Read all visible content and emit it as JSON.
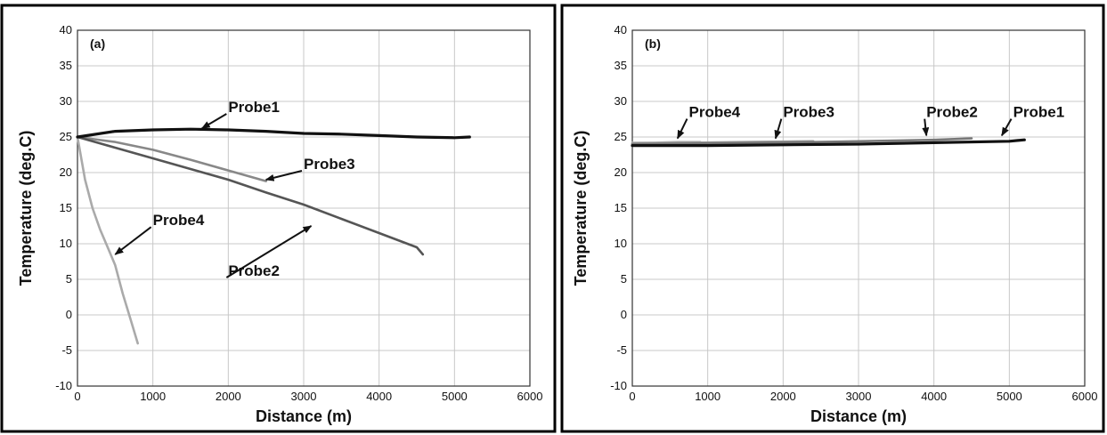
{
  "chart_data": [
    {
      "type": "line",
      "panel_label": "(a)",
      "xlabel": "Distance (m)",
      "ylabel": "Temperature (deg.C)",
      "xlim": [
        0,
        6000
      ],
      "ylim": [
        -10,
        40
      ],
      "xticks": [
        "0",
        "1000",
        "2000",
        "3000",
        "4000",
        "5000",
        "6000"
      ],
      "yticks": [
        "-10",
        "-5",
        "0",
        "5",
        "10",
        "15",
        "20",
        "25",
        "30",
        "35",
        "40"
      ],
      "grid": true,
      "series": [
        {
          "name": "Probe1",
          "color": "#111111",
          "x": [
            0,
            500,
            1000,
            1500,
            2000,
            2500,
            3000,
            3500,
            4000,
            4500,
            5000,
            5200
          ],
          "y": [
            25,
            25.8,
            26,
            26.1,
            26,
            25.8,
            25.5,
            25.4,
            25.2,
            25.0,
            24.9,
            25.0
          ]
        },
        {
          "name": "Probe2",
          "color": "#555555",
          "x": [
            0,
            500,
            1000,
            1500,
            2000,
            2500,
            3000,
            3500,
            4000,
            4500,
            4580
          ],
          "y": [
            25,
            23.5,
            22,
            20.5,
            19,
            17.2,
            15.5,
            13.5,
            11.5,
            9.5,
            8.5
          ]
        },
        {
          "name": "Probe3",
          "color": "#888888",
          "x": [
            0,
            500,
            1000,
            1500,
            2000,
            2500
          ],
          "y": [
            25,
            24.3,
            23.2,
            21.8,
            20.3,
            18.8
          ]
        },
        {
          "name": "Probe4",
          "color": "#aaaaaa",
          "x": [
            0,
            100,
            200,
            300,
            400,
            500,
            600,
            700,
            800
          ],
          "y": [
            25,
            19,
            15,
            12,
            9.5,
            7,
            3,
            -0.5,
            -4
          ]
        }
      ],
      "annotations": [
        {
          "text": "Probe1",
          "x": 2000,
          "y": 28.5,
          "target_x": 1650,
          "target_y": 26.2
        },
        {
          "text": "Probe3",
          "x": 3000,
          "y": 20.5,
          "target_x": 2500,
          "target_y": 19
        },
        {
          "text": "Probe4",
          "x": 1000,
          "y": 12.6,
          "target_x": 500,
          "target_y": 8.5
        },
        {
          "text": "Probe2",
          "x": 2000,
          "y": 5.5,
          "target_x": 3100,
          "target_y": 12.5
        }
      ]
    },
    {
      "type": "line",
      "panel_label": "(b)",
      "xlabel": "Distance (m)",
      "ylabel": "Temperature (deg.C)",
      "xlim": [
        0,
        6000
      ],
      "ylim": [
        -10,
        40
      ],
      "xticks": [
        "0",
        "1000",
        "2000",
        "3000",
        "4000",
        "5000",
        "6000"
      ],
      "yticks": [
        "-10",
        "-5",
        "0",
        "5",
        "10",
        "15",
        "20",
        "25",
        "30",
        "35",
        "40"
      ],
      "grid": true,
      "series": [
        {
          "name": "Probe1",
          "color": "#111111",
          "x": [
            0,
            1000,
            2000,
            3000,
            4000,
            5000,
            5200
          ],
          "y": [
            23.8,
            23.8,
            23.9,
            24.0,
            24.2,
            24.4,
            24.6
          ]
        },
        {
          "name": "Probe2",
          "color": "#777777",
          "x": [
            0,
            1000,
            2000,
            3000,
            4000,
            4500
          ],
          "y": [
            24.0,
            24.1,
            24.2,
            24.4,
            24.6,
            24.8
          ]
        },
        {
          "name": "Probe3",
          "color": "#999999",
          "x": [
            0,
            800,
            1600,
            2400
          ],
          "y": [
            24.1,
            24.2,
            24.3,
            24.4
          ]
        },
        {
          "name": "Probe4",
          "color": "#bbbbbb",
          "x": [
            0,
            300,
            600,
            900
          ],
          "y": [
            24.2,
            24.2,
            24.3,
            24.3
          ]
        }
      ],
      "annotations": [
        {
          "text": "Probe4",
          "x": 750,
          "y": 27.8,
          "target_x": 600,
          "target_y": 24.8
        },
        {
          "text": "Probe3",
          "x": 2000,
          "y": 27.8,
          "target_x": 1900,
          "target_y": 24.8
        },
        {
          "text": "Probe2",
          "x": 3900,
          "y": 27.8,
          "target_x": 3900,
          "target_y": 25.2
        },
        {
          "text": "Probe1",
          "x": 5050,
          "y": 27.8,
          "target_x": 4900,
          "target_y": 25.2
        }
      ]
    }
  ]
}
